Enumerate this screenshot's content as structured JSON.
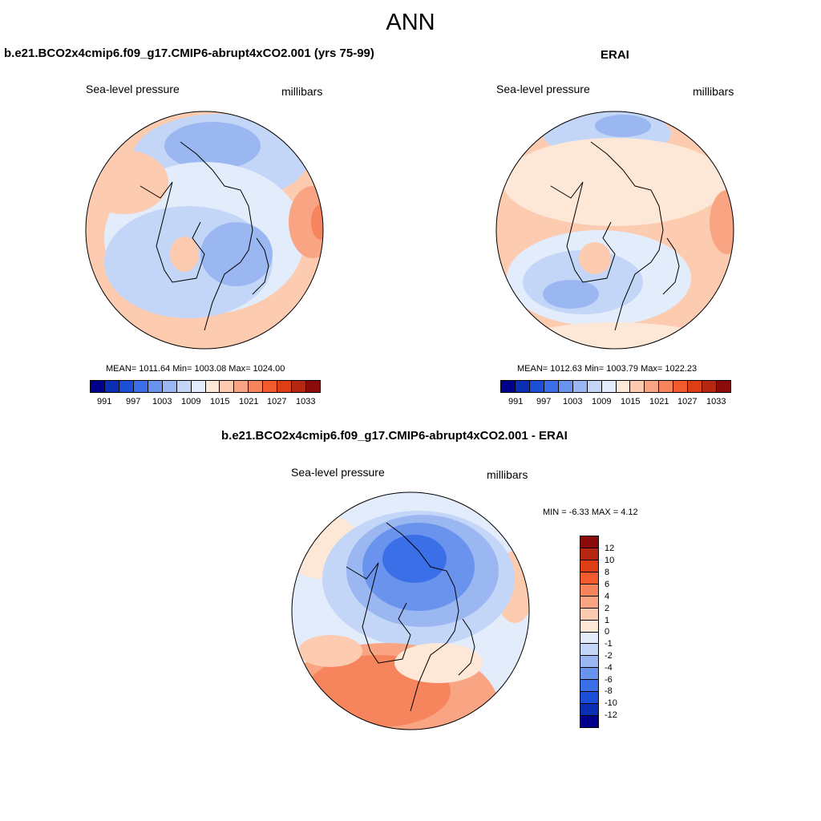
{
  "title": "ANN",
  "panels": [
    {
      "title": "b.e21.BCO2x4cmip6.f09_g17.CMIP6-abrupt4xCO2.001 (yrs 75-99)",
      "variable": "Sea-level pressure",
      "units": "millibars",
      "stats": "MEAN= 1011.64  Min= 1003.08  Max= 1024.00"
    },
    {
      "title": "ERAI",
      "variable": "Sea-level pressure",
      "units": "millibars",
      "stats": "MEAN= 1012.63  Min= 1003.79  Max= 1022.23"
    },
    {
      "title": "b.e21.BCO2x4cmip6.f09_g17.CMIP6-abrupt4xCO2.001 - ERAI",
      "variable": "Sea-level pressure",
      "units": "millibars",
      "stats": "MIN =  -6.33 MAX =   4.12"
    }
  ],
  "colorbar_abs": {
    "ticks": [
      "991",
      "997",
      "1003",
      "1009",
      "1015",
      "1021",
      "1027",
      "1033"
    ],
    "colors": [
      "#00008b",
      "#0a2fb4",
      "#1b4fd8",
      "#3a6fe8",
      "#6a93ee",
      "#9bb7f2",
      "#c4d6f7",
      "#e2ecfb",
      "#fde7d6",
      "#fccbb0",
      "#f9a583",
      "#f6845c",
      "#f25c2c",
      "#dd3e13",
      "#b52711",
      "#8a0b0b"
    ]
  },
  "colorbar_diff": {
    "ticks": [
      "12",
      "10",
      "8",
      "6",
      "4",
      "2",
      "1",
      "0",
      "-1",
      "-2",
      "-4",
      "-6",
      "-8",
      "-10",
      "-12"
    ],
    "colors": [
      "#8a0b0b",
      "#b52711",
      "#dd3e13",
      "#f25c2c",
      "#f6845c",
      "#f9a583",
      "#fccbb0",
      "#fde7d6",
      "#e2ecfb",
      "#c4d6f7",
      "#9bb7f2",
      "#6a93ee",
      "#3a6fe8",
      "#1b4fd8",
      "#0a2fb4",
      "#00008b"
    ]
  }
}
